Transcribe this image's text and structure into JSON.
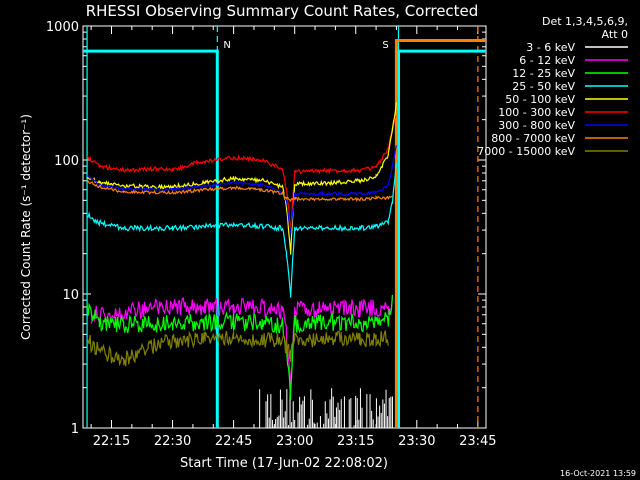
{
  "chart_data": {
    "type": "line",
    "title": "RHESSI Observing Summary Count Rates, Corrected",
    "xlabel": "Start Time (17-Jun-02 22:08:02)",
    "ylabel": "Corrected Count Rate (s⁻¹ detector⁻¹)",
    "ylog": true,
    "ylim": [
      1,
      1000
    ],
    "y_ticks": [
      "1",
      "10",
      "100",
      "1000"
    ],
    "x_range_min": [
      0,
      99
    ],
    "x_ticks": [
      {
        "m": 7,
        "label": "22:15"
      },
      {
        "m": 22,
        "label": "22:30"
      },
      {
        "m": 37,
        "label": "22:45"
      },
      {
        "m": 52,
        "label": "23:00"
      },
      {
        "m": 67,
        "label": "23:15"
      },
      {
        "m": 82,
        "label": "23:30"
      },
      {
        "m": 97,
        "label": "23:45"
      }
    ],
    "legend_header": [
      "Det 1,3,4,5,6,9,",
      "Att 0"
    ],
    "legend_position": "right",
    "series": [
      {
        "name": "3 - 6 keV",
        "color": "#ffffff"
      },
      {
        "name": "6 - 12 keV",
        "color": "#ff00ff"
      },
      {
        "name": "12 - 25 keV",
        "color": "#00ff00"
      },
      {
        "name": "25 - 50 keV",
        "color": "#00ffff"
      },
      {
        "name": "50 - 100 keV",
        "color": "#ffff00"
      },
      {
        "name": "100 - 300 keV",
        "color": "#ff0000"
      },
      {
        "name": "300 - 800 keV",
        "color": "#0000ff"
      },
      {
        "name": "800 - 7000 keV",
        "color": "#ff8000"
      },
      {
        "name": "7000 - 15000 keV",
        "color": "#808000"
      }
    ],
    "lines": [
      {
        "series": "100 - 300 keV",
        "points": [
          [
            1,
            105
          ],
          [
            4,
            90
          ],
          [
            10,
            84
          ],
          [
            18,
            86
          ],
          [
            22,
            84
          ],
          [
            28,
            95
          ],
          [
            37,
            104
          ],
          [
            44,
            100
          ],
          [
            49,
            85
          ],
          [
            50,
            60
          ],
          [
            51,
            30
          ],
          [
            52,
            82
          ],
          [
            60,
            83
          ],
          [
            68,
            84
          ],
          [
            72,
            88
          ],
          [
            75,
            120
          ],
          [
            76,
            170
          ],
          [
            77,
            220
          ]
        ]
      },
      {
        "series": "50 - 100 keV",
        "points": [
          [
            1,
            76
          ],
          [
            4,
            68
          ],
          [
            10,
            64
          ],
          [
            22,
            63
          ],
          [
            30,
            68
          ],
          [
            37,
            73
          ],
          [
            44,
            70
          ],
          [
            49,
            63
          ],
          [
            50,
            45
          ],
          [
            51,
            20
          ],
          [
            52,
            66
          ],
          [
            60,
            67
          ],
          [
            68,
            70
          ],
          [
            72,
            75
          ],
          [
            75,
            110
          ],
          [
            76,
            170
          ],
          [
            77,
            260
          ]
        ]
      },
      {
        "series": "300 - 800 keV",
        "points": [
          [
            1,
            78
          ],
          [
            4,
            65
          ],
          [
            10,
            61
          ],
          [
            22,
            60
          ],
          [
            30,
            64
          ],
          [
            37,
            68
          ],
          [
            44,
            65
          ],
          [
            49,
            58
          ],
          [
            50,
            50
          ],
          [
            51,
            28
          ],
          [
            52,
            56
          ],
          [
            60,
            56
          ],
          [
            68,
            56
          ],
          [
            72,
            57
          ],
          [
            75,
            65
          ],
          [
            76,
            90
          ],
          [
            77,
            130
          ]
        ]
      },
      {
        "series": "800 - 7000 keV",
        "points": [
          [
            1,
            70
          ],
          [
            4,
            63
          ],
          [
            10,
            58
          ],
          [
            22,
            57
          ],
          [
            30,
            60
          ],
          [
            37,
            62
          ],
          [
            44,
            60
          ],
          [
            49,
            56
          ],
          [
            50,
            52
          ],
          [
            51,
            50
          ],
          [
            52,
            51
          ],
          [
            60,
            51
          ],
          [
            68,
            51
          ],
          [
            72,
            52
          ],
          [
            75,
            52
          ],
          [
            76,
            54
          ]
        ]
      },
      {
        "series": "25 - 50 keV",
        "points": [
          [
            1,
            39
          ],
          [
            4,
            34
          ],
          [
            10,
            31
          ],
          [
            22,
            31
          ],
          [
            30,
            32
          ],
          [
            37,
            33
          ],
          [
            44,
            32
          ],
          [
            49,
            31
          ],
          [
            50,
            20
          ],
          [
            51,
            9.5
          ],
          [
            52,
            31
          ],
          [
            60,
            31
          ],
          [
            68,
            31
          ],
          [
            72,
            32
          ],
          [
            75,
            35
          ],
          [
            76,
            48
          ],
          [
            77,
            95
          ]
        ]
      },
      {
        "series": "6 - 12 keV",
        "points": [
          [
            2,
            7
          ],
          [
            5,
            7
          ],
          [
            10,
            7.5
          ],
          [
            22,
            8
          ],
          [
            30,
            8
          ],
          [
            37,
            8
          ],
          [
            44,
            8
          ],
          [
            49,
            7.5
          ],
          [
            50,
            5
          ],
          [
            51,
            2.2
          ],
          [
            52,
            7.5
          ],
          [
            60,
            7.8
          ],
          [
            68,
            7.8
          ],
          [
            72,
            7.8
          ],
          [
            75,
            7.8
          ],
          [
            76,
            8.5
          ]
        ]
      },
      {
        "series": "12 - 25 keV",
        "points": [
          [
            1,
            8
          ],
          [
            4,
            6
          ],
          [
            10,
            5.9
          ],
          [
            22,
            6.1
          ],
          [
            30,
            6.1
          ],
          [
            37,
            6.2
          ],
          [
            44,
            6.1
          ],
          [
            49,
            5.8
          ],
          [
            50,
            4
          ],
          [
            51,
            1.8
          ],
          [
            52,
            6
          ],
          [
            60,
            6.1
          ],
          [
            68,
            6.1
          ],
          [
            72,
            6.2
          ],
          [
            75,
            6.5
          ],
          [
            76,
            9
          ]
        ]
      },
      {
        "series": "7000 - 15000 keV",
        "points": [
          [
            1,
            4.5
          ],
          [
            4,
            3.8
          ],
          [
            10,
            3.2
          ],
          [
            16,
            4
          ],
          [
            22,
            4.5
          ],
          [
            30,
            4.6
          ],
          [
            37,
            4.7
          ],
          [
            44,
            4.6
          ],
          [
            49,
            4.5
          ],
          [
            50,
            4
          ],
          [
            51,
            3.5
          ],
          [
            52,
            4.5
          ],
          [
            60,
            4.6
          ],
          [
            68,
            4.6
          ],
          [
            72,
            4.6
          ],
          [
            75,
            4.7
          ]
        ]
      }
    ],
    "bursts": [
      {
        "series": "3 - 6 keV",
        "x_from": 43,
        "x_to": 77,
        "y_low": 1,
        "y_high_max": 2.0
      }
    ],
    "attenuator_bars": [
      {
        "series": "25 - 50 keV",
        "points": [
          [
            0,
            650
          ],
          [
            33,
            650
          ],
          [
            33,
            1
          ]
        ]
      },
      {
        "series": "25 - 50 keV",
        "points": [
          [
            77.5,
            1
          ],
          [
            77.5,
            650
          ],
          [
            99,
            650
          ]
        ]
      },
      {
        "series": "800 - 7000 keV",
        "points": [
          [
            77,
            1
          ],
          [
            77,
            780
          ],
          [
            99,
            780
          ]
        ]
      }
    ],
    "markers": [
      {
        "label": "N",
        "x": 33,
        "color": "#00ffff"
      },
      {
        "label": "S",
        "x": 76.5,
        "color": "#ff8000"
      }
    ],
    "vertical_lines": [
      {
        "x": 1,
        "color": "#00ffff",
        "style": "solid"
      },
      {
        "x": 33,
        "color": "#00ffff",
        "style": "dashed"
      },
      {
        "x": 77.5,
        "color": "#00ffff",
        "style": "solid"
      },
      {
        "x": 97,
        "color": "#ff8000",
        "style": "dashed"
      }
    ],
    "footer": "16-Oct-2021 13:59"
  }
}
